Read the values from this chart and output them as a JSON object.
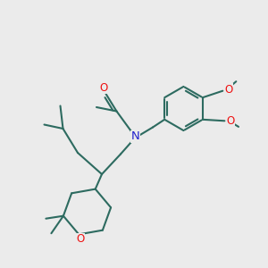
{
  "bg_color": "#ebebeb",
  "bond_color": "#2d6b60",
  "O_color": "#ee1111",
  "N_color": "#2222cc",
  "lw": 1.5,
  "fs": 8.5,
  "fig_size": [
    3.0,
    3.0
  ],
  "dpi": 100,
  "xlim": [
    0.0,
    1.0
  ],
  "ylim": [
    0.0,
    1.0
  ]
}
